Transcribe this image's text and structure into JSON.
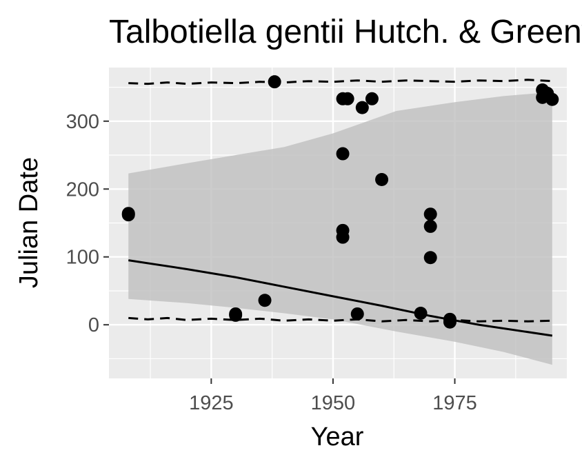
{
  "chart_data": {
    "type": "scatter",
    "title": "Talbotiella gentii Hutch. & Greenway",
    "xlabel": "Year",
    "ylabel": "Julian Date",
    "xlim": [
      1904,
      1998
    ],
    "ylim": [
      -79,
      379
    ],
    "x_ticks": [
      1925,
      1950,
      1975
    ],
    "y_ticks": [
      0,
      100,
      200,
      300
    ],
    "grid": true,
    "points": [
      {
        "x": 1908,
        "y": 162
      },
      {
        "x": 1908,
        "y": 164
      },
      {
        "x": 1930,
        "y": 14
      },
      {
        "x": 1930,
        "y": 16
      },
      {
        "x": 1936,
        "y": 36
      },
      {
        "x": 1938,
        "y": 358
      },
      {
        "x": 1952,
        "y": 333
      },
      {
        "x": 1953,
        "y": 333
      },
      {
        "x": 1952,
        "y": 252
      },
      {
        "x": 1952,
        "y": 139
      },
      {
        "x": 1952,
        "y": 129
      },
      {
        "x": 1955,
        "y": 16
      },
      {
        "x": 1956,
        "y": 320
      },
      {
        "x": 1958,
        "y": 333
      },
      {
        "x": 1960,
        "y": 214
      },
      {
        "x": 1968,
        "y": 17
      },
      {
        "x": 1970,
        "y": 163
      },
      {
        "x": 1970,
        "y": 145
      },
      {
        "x": 1970,
        "y": 99
      },
      {
        "x": 1974,
        "y": 8
      },
      {
        "x": 1974,
        "y": 4
      },
      {
        "x": 1993,
        "y": 346
      },
      {
        "x": 1993,
        "y": 335
      },
      {
        "x": 1994,
        "y": 341
      },
      {
        "x": 1995,
        "y": 332
      }
    ],
    "fit_line": {
      "x": [
        1908,
        1920,
        1930,
        1940,
        1950,
        1960,
        1970,
        1980,
        1995
      ],
      "y": [
        95,
        82,
        70,
        56,
        42,
        28,
        13,
        0,
        -16
      ]
    },
    "ribbon": {
      "x": [
        1908,
        1920,
        1930,
        1940,
        1950,
        1963,
        1975,
        1985,
        1995
      ],
      "upper": [
        223,
        238,
        250,
        262,
        282,
        315,
        328,
        337,
        343
      ],
      "lower": [
        38,
        32,
        25,
        17,
        8,
        -10,
        -25,
        -40,
        -59
      ]
    },
    "upper_dashed": {
      "x": [
        1908,
        1912,
        1916,
        1920,
        1925,
        1930,
        1935,
        1940,
        1945,
        1950,
        1955,
        1960,
        1965,
        1970,
        1975,
        1980,
        1985,
        1990,
        1995
      ],
      "y": [
        356,
        355,
        357,
        355,
        357,
        356,
        358,
        357,
        359,
        358,
        360,
        358,
        360,
        359,
        358,
        360,
        359,
        361,
        359
      ]
    },
    "lower_dashed": {
      "x": [
        1908,
        1912,
        1916,
        1920,
        1925,
        1930,
        1935,
        1940,
        1945,
        1950,
        1955,
        1960,
        1965,
        1970,
        1975,
        1980,
        1985,
        1990,
        1995
      ],
      "y": [
        10,
        8,
        10,
        7,
        9,
        7,
        9,
        6,
        8,
        6,
        8,
        5,
        7,
        5,
        7,
        5,
        6,
        5,
        6
      ]
    },
    "colors": {
      "panel": "#ebebeb",
      "grid": "#ffffff",
      "ribbon": "#bfbfbf",
      "ink": "#000000",
      "tick_text": "#4d4d4d",
      "tick_mark": "#333333"
    }
  }
}
